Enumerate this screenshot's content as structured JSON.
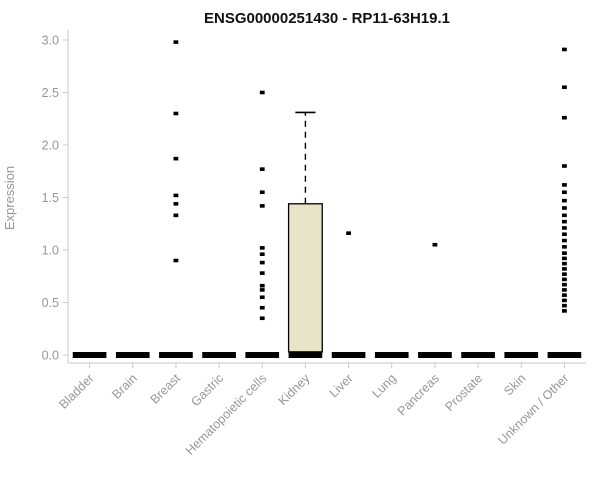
{
  "chart_data": {
    "type": "boxplot",
    "title": "ENSG00000251430 - RP11-63H19.1",
    "ylabel": "Expression",
    "xlabel": "",
    "ylim": [
      0,
      3.0
    ],
    "yticks": [
      0.0,
      0.5,
      1.0,
      1.5,
      2.0,
      2.5,
      3.0
    ],
    "grid": false,
    "legend": "none",
    "categories": [
      "Bladder",
      "Brain",
      "Breast",
      "Gastric",
      "Hematopoietic cells",
      "Kidney",
      "Liver",
      "Lung",
      "Pancreas",
      "Prostate",
      "Skin",
      "Unknown / Other"
    ],
    "series": [
      {
        "category": "Bladder",
        "median": 0,
        "q1": 0,
        "q3": 0,
        "whisker_low": 0,
        "whisker_high": 0,
        "outliers": []
      },
      {
        "category": "Brain",
        "median": 0,
        "q1": 0,
        "q3": 0,
        "whisker_low": 0,
        "whisker_high": 0,
        "outliers": []
      },
      {
        "category": "Breast",
        "median": 0,
        "q1": 0,
        "q3": 0,
        "whisker_low": 0,
        "whisker_high": 0,
        "outliers": [
          2.98,
          2.3,
          1.87,
          1.52,
          1.44,
          1.33,
          0.9
        ]
      },
      {
        "category": "Gastric",
        "median": 0,
        "q1": 0,
        "q3": 0,
        "whisker_low": 0,
        "whisker_high": 0,
        "outliers": []
      },
      {
        "category": "Hematopoietic cells",
        "median": 0,
        "q1": 0,
        "q3": 0,
        "whisker_low": 0,
        "whisker_high": 0,
        "outliers": [
          2.5,
          1.77,
          1.55,
          1.42,
          1.02,
          0.96,
          0.88,
          0.78,
          0.66,
          0.62,
          0.55,
          0.45,
          0.35
        ]
      },
      {
        "category": "Kidney",
        "median": 0,
        "q1": 0.03,
        "q3": 1.44,
        "whisker_low": 0,
        "whisker_high": 2.31,
        "outliers": []
      },
      {
        "category": "Liver",
        "median": 0,
        "q1": 0,
        "q3": 0,
        "whisker_low": 0,
        "whisker_high": 0,
        "outliers": [
          1.16
        ]
      },
      {
        "category": "Lung",
        "median": 0,
        "q1": 0,
        "q3": 0,
        "whisker_low": 0,
        "whisker_high": 0,
        "outliers": []
      },
      {
        "category": "Pancreas",
        "median": 0,
        "q1": 0,
        "q3": 0,
        "whisker_low": 0,
        "whisker_high": 0,
        "outliers": [
          1.05
        ]
      },
      {
        "category": "Prostate",
        "median": 0,
        "q1": 0,
        "q3": 0,
        "whisker_low": 0,
        "whisker_high": 0,
        "outliers": []
      },
      {
        "category": "Skin",
        "median": 0,
        "q1": 0,
        "q3": 0,
        "whisker_low": 0,
        "whisker_high": 0,
        "outliers": []
      },
      {
        "category": "Unknown / Other",
        "median": 0,
        "q1": 0,
        "q3": 0,
        "whisker_low": 0,
        "whisker_high": 0,
        "outliers": [
          2.91,
          2.55,
          2.26,
          1.8,
          1.62,
          1.55,
          1.47,
          1.4,
          1.33,
          1.27,
          1.21,
          1.15,
          1.09,
          1.03,
          0.97,
          0.92,
          0.87,
          0.82,
          0.77,
          0.72,
          0.67,
          0.62,
          0.57,
          0.52,
          0.47,
          0.42
        ]
      }
    ],
    "colors": {
      "box_fill": "#e9e3c8",
      "box_stroke": "#000000",
      "point": "#000000",
      "axis": "#c8c8c8",
      "tick_label": "#979797",
      "title": "#111111"
    }
  }
}
